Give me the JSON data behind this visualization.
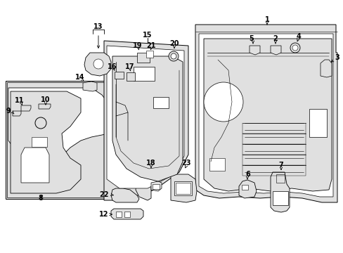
{
  "bg_color": "#ffffff",
  "panel_fill": "#e0e0e0",
  "line_color": "#000000",
  "fig_width": 4.89,
  "fig_height": 3.6,
  "dpi": 100,
  "label_fs": 7.0
}
